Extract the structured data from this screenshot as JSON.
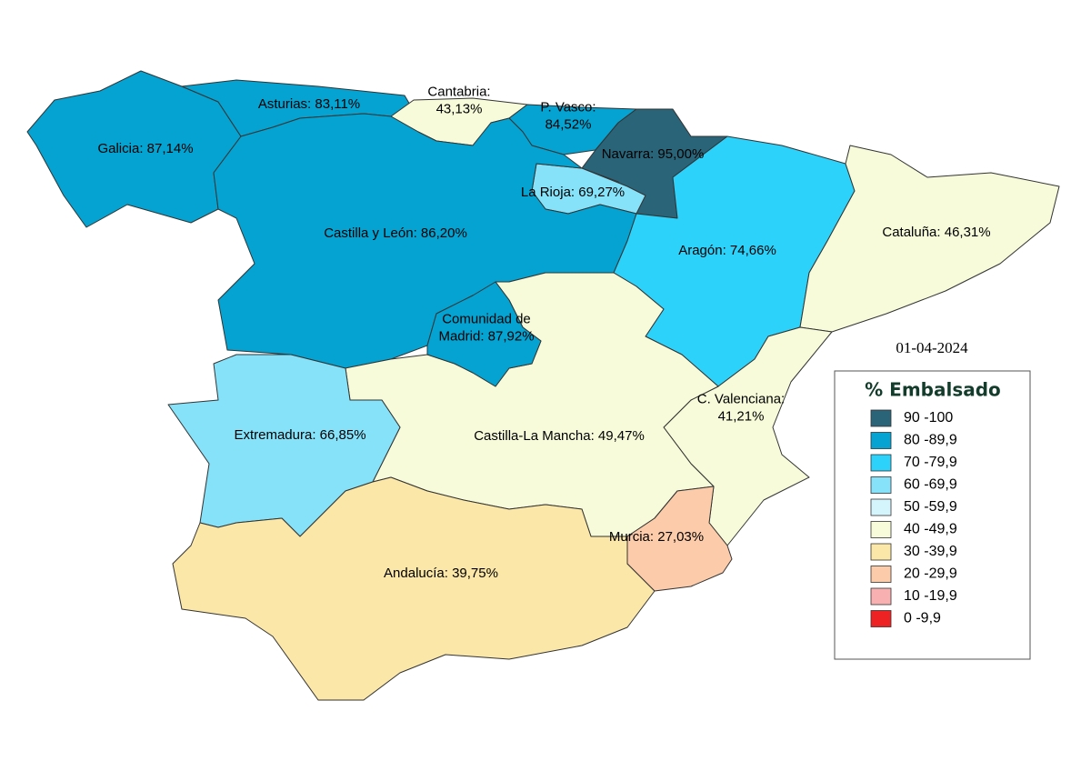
{
  "date": "01-04-2024",
  "legend": {
    "title": "% Embalsado",
    "items": [
      {
        "label": "90 -100",
        "color": "#2a6478"
      },
      {
        "label": "80 -89,9",
        "color": "#04a3d1"
      },
      {
        "label": "70 -79,9",
        "color": "#2dd2fa"
      },
      {
        "label": "60 -69,9",
        "color": "#86e2f9"
      },
      {
        "label": "50 -59,9",
        "color": "#d4f5fc"
      },
      {
        "label": "40 -49,9",
        "color": "#f7fbd9"
      },
      {
        "label": "30 -39,9",
        "color": "#fbe7a8"
      },
      {
        "label": "20 -29,9",
        "color": "#fbcbaa"
      },
      {
        "label": "10 -19,9",
        "color": "#f9b0b0"
      },
      {
        "label": "0 -9,9",
        "color": "#ee2222"
      }
    ]
  },
  "regions": [
    {
      "lines": [
        "Galicia: 87,14%"
      ],
      "color": "#04a3d1"
    },
    {
      "lines": [
        "Asturias: 83,11%"
      ],
      "color": "#04a3d1"
    },
    {
      "lines": [
        "Cantabria:",
        "43,13%"
      ],
      "color": "#f7fbd9"
    },
    {
      "lines": [
        "P. Vasco:",
        "84,52%"
      ],
      "color": "#04a3d1"
    },
    {
      "lines": [
        "Navarra: 95,00%"
      ],
      "color": "#2a6478"
    },
    {
      "lines": [
        "La Rioja: 69,27%"
      ],
      "color": "#86e2f9"
    },
    {
      "lines": [
        "Castilla y León: 86,20%"
      ],
      "color": "#04a3d1"
    },
    {
      "lines": [
        "Comunidad de",
        "Madrid: 87,92%"
      ],
      "color": "#04a3d1"
    },
    {
      "lines": [
        "Aragón: 74,66%"
      ],
      "color": "#2dd2fa"
    },
    {
      "lines": [
        "Cataluña: 46,31%"
      ],
      "color": "#f7fbd9"
    },
    {
      "lines": [
        "C. Valenciana:",
        "41,21%"
      ],
      "color": "#f7fbd9"
    },
    {
      "lines": [
        "Castilla-La Mancha: 49,47%"
      ],
      "color": "#f7fbd9"
    },
    {
      "lines": [
        "Extremadura: 66,85%"
      ],
      "color": "#86e2f9"
    },
    {
      "lines": [
        "Andalucía: 39,75%"
      ],
      "color": "#fbe7a8"
    },
    {
      "lines": [
        "Murcia: 27,03%"
      ],
      "color": "#fbcbaa"
    }
  ]
}
